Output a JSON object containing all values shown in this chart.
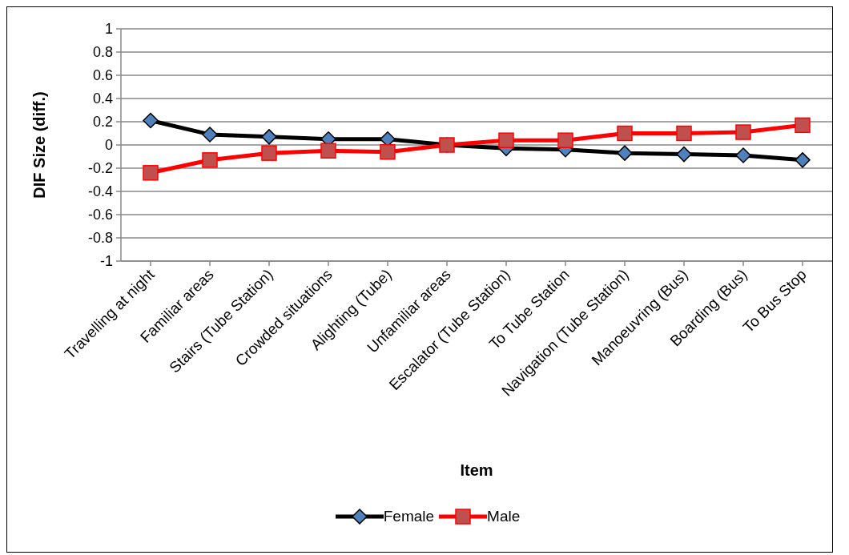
{
  "chart_data": {
    "type": "line",
    "xlabel": "Item",
    "ylabel": "DIF Size (diff.)",
    "categories": [
      "Travelling at night",
      "Familiar areas",
      "Stairs (Tube Station)",
      "Crowded situations",
      "Alighting (Tube)",
      "Unfamiliar areas",
      "Escalator (Tube Station)",
      "To Tube Station",
      "Navigation (Tube Station)",
      "Manoeuvring (Bus)",
      "Boarding (Bus)",
      "To Bus Stop"
    ],
    "series": [
      {
        "name": "Female",
        "color": "#000000",
        "marker": "diamond",
        "values": [
          0.21,
          0.09,
          0.07,
          0.05,
          0.05,
          0.0,
          -0.03,
          -0.04,
          -0.07,
          -0.08,
          -0.09,
          -0.13
        ]
      },
      {
        "name": "Male",
        "color": "#ff0000",
        "marker": "square",
        "values": [
          -0.24,
          -0.13,
          -0.07,
          -0.05,
          -0.06,
          0.0,
          0.04,
          0.04,
          0.1,
          0.1,
          0.11,
          0.17
        ]
      }
    ],
    "ylim": [
      -1,
      1
    ],
    "yticks": [
      -1,
      -0.8,
      -0.6,
      -0.4,
      -0.2,
      0,
      0.2,
      0.4,
      0.6,
      0.8,
      1
    ],
    "grid": "y",
    "legend": "bottom"
  }
}
